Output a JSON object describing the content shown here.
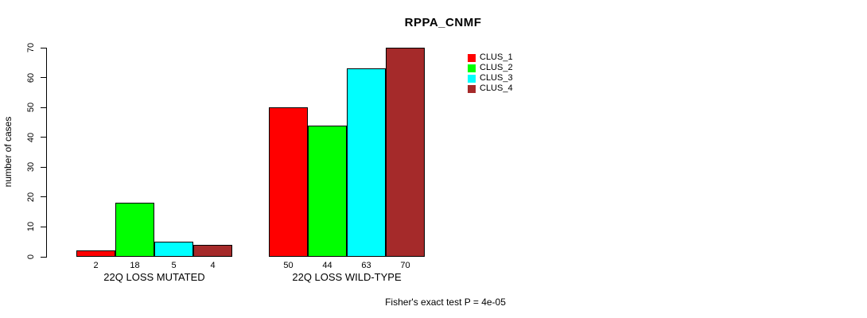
{
  "chart_data": {
    "type": "bar",
    "title": "RPPA_CNMF",
    "ylabel": "number of cases",
    "xlabel": "",
    "ylim": [
      0,
      70
    ],
    "yticks": [
      0,
      10,
      20,
      30,
      40,
      50,
      60,
      70
    ],
    "categories": [
      "22Q LOSS MUTATED",
      "22Q LOSS WILD-TYPE"
    ],
    "series": [
      {
        "name": "CLUS_1",
        "color": "#FF0000",
        "values": [
          2,
          50
        ]
      },
      {
        "name": "CLUS_2",
        "color": "#00FF00",
        "values": [
          18,
          44
        ]
      },
      {
        "name": "CLUS_3",
        "color": "#00FFFF",
        "values": [
          5,
          63
        ]
      },
      {
        "name": "CLUS_4",
        "color": "#A52A2A",
        "values": [
          4,
          70
        ]
      }
    ],
    "bar_value_labels": true,
    "legend_position": "top-right",
    "grid": false,
    "annotation": "Fisher's exact test P = 4e-05"
  },
  "colors": {
    "background": "#FFFFFF",
    "axis": "#000000",
    "text": "#000000",
    "bar_border": "#000000"
  }
}
